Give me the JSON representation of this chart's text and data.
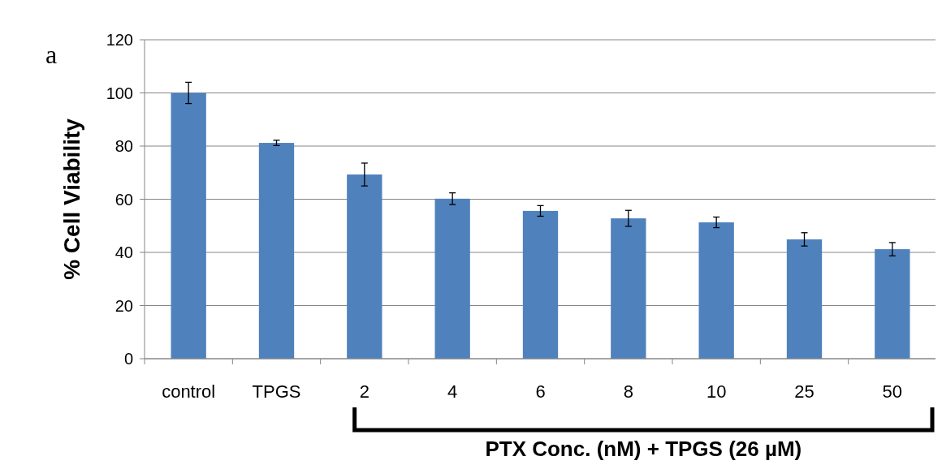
{
  "chart_data": {
    "type": "bar",
    "ylabel": "% Cell Viability",
    "xlabel": "PTX Conc. (nM) + TPGS (26 µM)",
    "annotations": [
      "a"
    ],
    "categories": [
      "control",
      "TPGS",
      "2",
      "4",
      "6",
      "8",
      "10",
      "25",
      "50"
    ],
    "values": [
      100,
      81.2,
      69.3,
      60.2,
      55.6,
      52.8,
      51.3,
      44.9,
      41.2
    ],
    "errors": [
      4,
      1,
      4.3,
      2.2,
      2,
      3,
      2,
      2.5,
      2.5
    ],
    "color": "#4f81bd",
    "ylim": [
      0,
      120
    ],
    "yticks": [
      0,
      20,
      40,
      60,
      80,
      100,
      120
    ],
    "grid": "y"
  }
}
